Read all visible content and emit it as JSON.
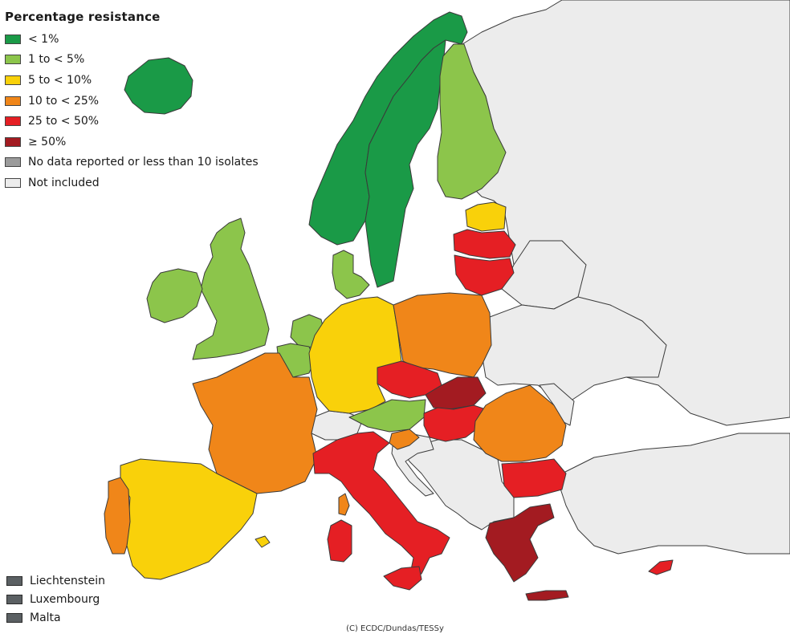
{
  "colors": {
    "lt1": "#1a9a47",
    "r1to5": "#8cc54b",
    "r5to10": "#f9d10a",
    "r10to25": "#f08619",
    "r25to50": "#e51f24",
    "ge50": "#a31b21",
    "nodata": "#9b9b9b",
    "notincluded": "#ececec",
    "smallstate": "#5b6063",
    "sea": "#ffffff"
  },
  "legend": {
    "title": "Percentage resistance",
    "items": [
      {
        "label": "< 1%",
        "color_key": "lt1"
      },
      {
        "label": "1 to < 5%",
        "color_key": "r1to5"
      },
      {
        "label": "5 to < 10%",
        "color_key": "r5to10"
      },
      {
        "label": "10 to < 25%",
        "color_key": "r10to25"
      },
      {
        "label": "25 to < 50%",
        "color_key": "r25to50"
      },
      {
        "label": "≥ 50%",
        "color_key": "ge50"
      },
      {
        "label": "No data reported or less than 10 isolates",
        "color_key": "nodata"
      },
      {
        "label": "Not included",
        "color_key": "notincluded"
      }
    ]
  },
  "small_states": [
    {
      "label": "Liechtenstein",
      "color_key": "smallstate"
    },
    {
      "label": "Luxembourg",
      "color_key": "smallstate"
    },
    {
      "label": "Malta",
      "color_key": "smallstate"
    }
  ],
  "credit": "(C) ECDC/Dundas/TESSy",
  "countries": [
    {
      "id": "russia",
      "category": "notincluded"
    },
    {
      "id": "belarus",
      "category": "notincluded"
    },
    {
      "id": "ukraine",
      "category": "notincluded"
    },
    {
      "id": "moldova",
      "category": "notincluded"
    },
    {
      "id": "turkey",
      "category": "notincluded"
    },
    {
      "id": "switzerland",
      "category": "notincluded"
    },
    {
      "id": "balkans",
      "category": "notincluded"
    },
    {
      "id": "iceland",
      "category": "lt1"
    },
    {
      "id": "norway",
      "category": "lt1"
    },
    {
      "id": "sweden",
      "category": "lt1"
    },
    {
      "id": "finland",
      "category": "r1to5"
    },
    {
      "id": "estonia",
      "category": "r5to10"
    },
    {
      "id": "latvia",
      "category": "r25to50"
    },
    {
      "id": "lithuania",
      "category": "r25to50"
    },
    {
      "id": "uk",
      "category": "r1to5"
    },
    {
      "id": "ireland",
      "category": "r1to5"
    },
    {
      "id": "denmark",
      "category": "r1to5"
    },
    {
      "id": "netherlands",
      "category": "r1to5"
    },
    {
      "id": "belgium",
      "category": "r1to5"
    },
    {
      "id": "germany",
      "category": "r5to10"
    },
    {
      "id": "poland",
      "category": "r10to25"
    },
    {
      "id": "czechia",
      "category": "r25to50"
    },
    {
      "id": "slovakia",
      "category": "ge50"
    },
    {
      "id": "austria",
      "category": "r1to5"
    },
    {
      "id": "hungary",
      "category": "r25to50"
    },
    {
      "id": "slovenia",
      "category": "r10to25"
    },
    {
      "id": "croatia",
      "category": "notincluded"
    },
    {
      "id": "romania",
      "category": "r10to25"
    },
    {
      "id": "bulgaria",
      "category": "r25to50"
    },
    {
      "id": "greece",
      "category": "ge50"
    },
    {
      "id": "crete",
      "category": "ge50"
    },
    {
      "id": "cyprus",
      "category": "r25to50"
    },
    {
      "id": "france",
      "category": "r10to25"
    },
    {
      "id": "spain",
      "category": "r5to10"
    },
    {
      "id": "balearics",
      "category": "r5to10"
    },
    {
      "id": "portugal",
      "category": "r10to25"
    },
    {
      "id": "italy",
      "category": "r25to50"
    },
    {
      "id": "sardinia",
      "category": "r25to50"
    },
    {
      "id": "corsica",
      "category": "r10to25"
    },
    {
      "id": "sicily",
      "category": "r25to50"
    }
  ]
}
